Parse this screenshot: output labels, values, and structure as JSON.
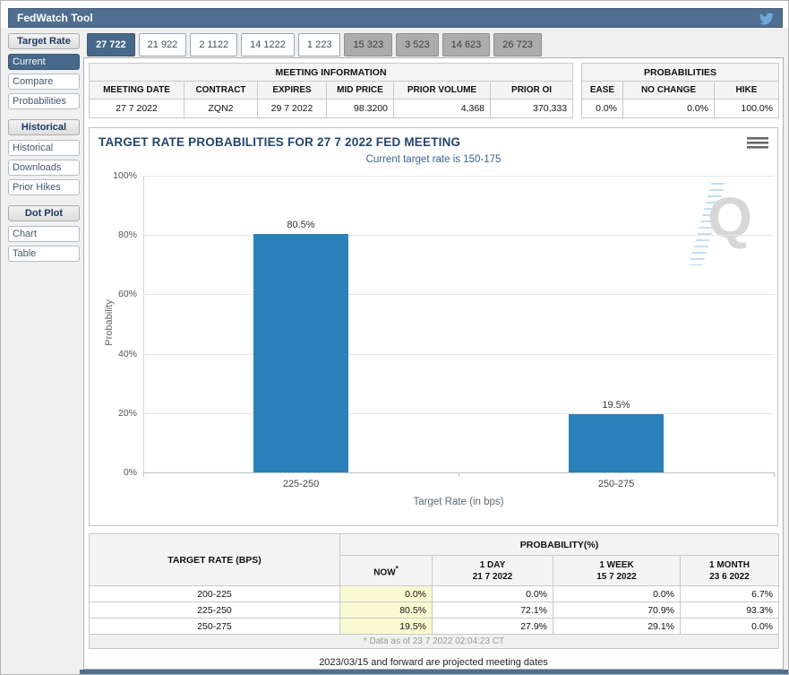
{
  "window": {
    "title": "FedWatch Tool"
  },
  "colors": {
    "header_bar": "#4f6e90",
    "accent": "#47688b",
    "bar": "#2a81b9",
    "highlight": "#fafad2"
  },
  "sidebar": {
    "sections": [
      {
        "header": "Target Rate",
        "items": [
          {
            "label": "Current",
            "selected": true
          },
          {
            "label": "Compare",
            "selected": false
          },
          {
            "label": "Probabilities",
            "selected": false
          }
        ]
      },
      {
        "header": "Historical",
        "items": [
          {
            "label": "Historical",
            "selected": false
          },
          {
            "label": "Downloads",
            "selected": false
          },
          {
            "label": "Prior Hikes",
            "selected": false
          }
        ]
      },
      {
        "header": "Dot Plot",
        "items": [
          {
            "label": "Chart",
            "selected": false
          },
          {
            "label": "Table",
            "selected": false
          }
        ]
      }
    ]
  },
  "tabs": [
    {
      "label": "27 722",
      "state": "selected"
    },
    {
      "label": "21 922",
      "state": "normal"
    },
    {
      "label": "2 1122",
      "state": "normal"
    },
    {
      "label": "14 1222",
      "state": "normal"
    },
    {
      "label": "1 223",
      "state": "normal"
    },
    {
      "label": "15 323",
      "state": "disabled"
    },
    {
      "label": "3 523",
      "state": "disabled"
    },
    {
      "label": "14 623",
      "state": "disabled"
    },
    {
      "label": "26 723",
      "state": "disabled"
    }
  ],
  "meeting_info": {
    "title": "MEETING INFORMATION",
    "columns": [
      "MEETING DATE",
      "CONTRACT",
      "EXPIRES",
      "MID PRICE",
      "PRIOR VOLUME",
      "PRIOR OI"
    ],
    "values": [
      "27 7 2022",
      "ZQN2",
      "29 7 2022",
      "98.3200",
      "4,368",
      "370,333"
    ],
    "align": [
      "center",
      "center",
      "center",
      "right",
      "right",
      "right"
    ]
  },
  "probabilities_panel": {
    "title": "PROBABILITIES",
    "columns": [
      "EASE",
      "NO CHANGE",
      "HIKE"
    ],
    "values": [
      "0.0%",
      "0.0%",
      "100.0%"
    ]
  },
  "chart_data": {
    "type": "bar",
    "title": "TARGET RATE PROBABILITIES FOR 27 7 2022 FED MEETING",
    "subtitle": "Current target rate is 150-175",
    "categories": [
      "225-250",
      "250-275"
    ],
    "values": [
      80.5,
      19.5
    ],
    "value_labels": [
      "80.5%",
      "19.5%"
    ],
    "xlabel": "Target Rate (in bps)",
    "ylabel": "Probability",
    "ylim": [
      0,
      100
    ],
    "ytick_step": 20,
    "ytick_suffix": "%",
    "grid": true,
    "legend": "none",
    "bar_color": "#2a81b9"
  },
  "prob_table": {
    "col1_header": "TARGET RATE (BPS)",
    "group_header": "PROBABILITY(%)",
    "sub_headers": [
      {
        "line1": "NOW",
        "sup": "*"
      },
      {
        "line1": "1 DAY",
        "line2": "21 7 2022"
      },
      {
        "line1": "1 WEEK",
        "line2": "15 7 2022"
      },
      {
        "line1": "1 MONTH",
        "line2": "23 6 2022"
      }
    ],
    "rows": [
      {
        "rate": "200-225",
        "now": "0.0%",
        "day": "0.0%",
        "week": "0.0%",
        "month": "6.7%"
      },
      {
        "rate": "225-250",
        "now": "80.5%",
        "day": "72.1%",
        "week": "70.9%",
        "month": "93.3%"
      },
      {
        "rate": "250-275",
        "now": "19.5%",
        "day": "27.9%",
        "week": "29.1%",
        "month": "0.0%"
      }
    ],
    "footnote": "* Data as of 23 7 2022 02:04:23 CT"
  },
  "notes": {
    "projected": "2023/03/15 and forward are projected meeting dates"
  }
}
